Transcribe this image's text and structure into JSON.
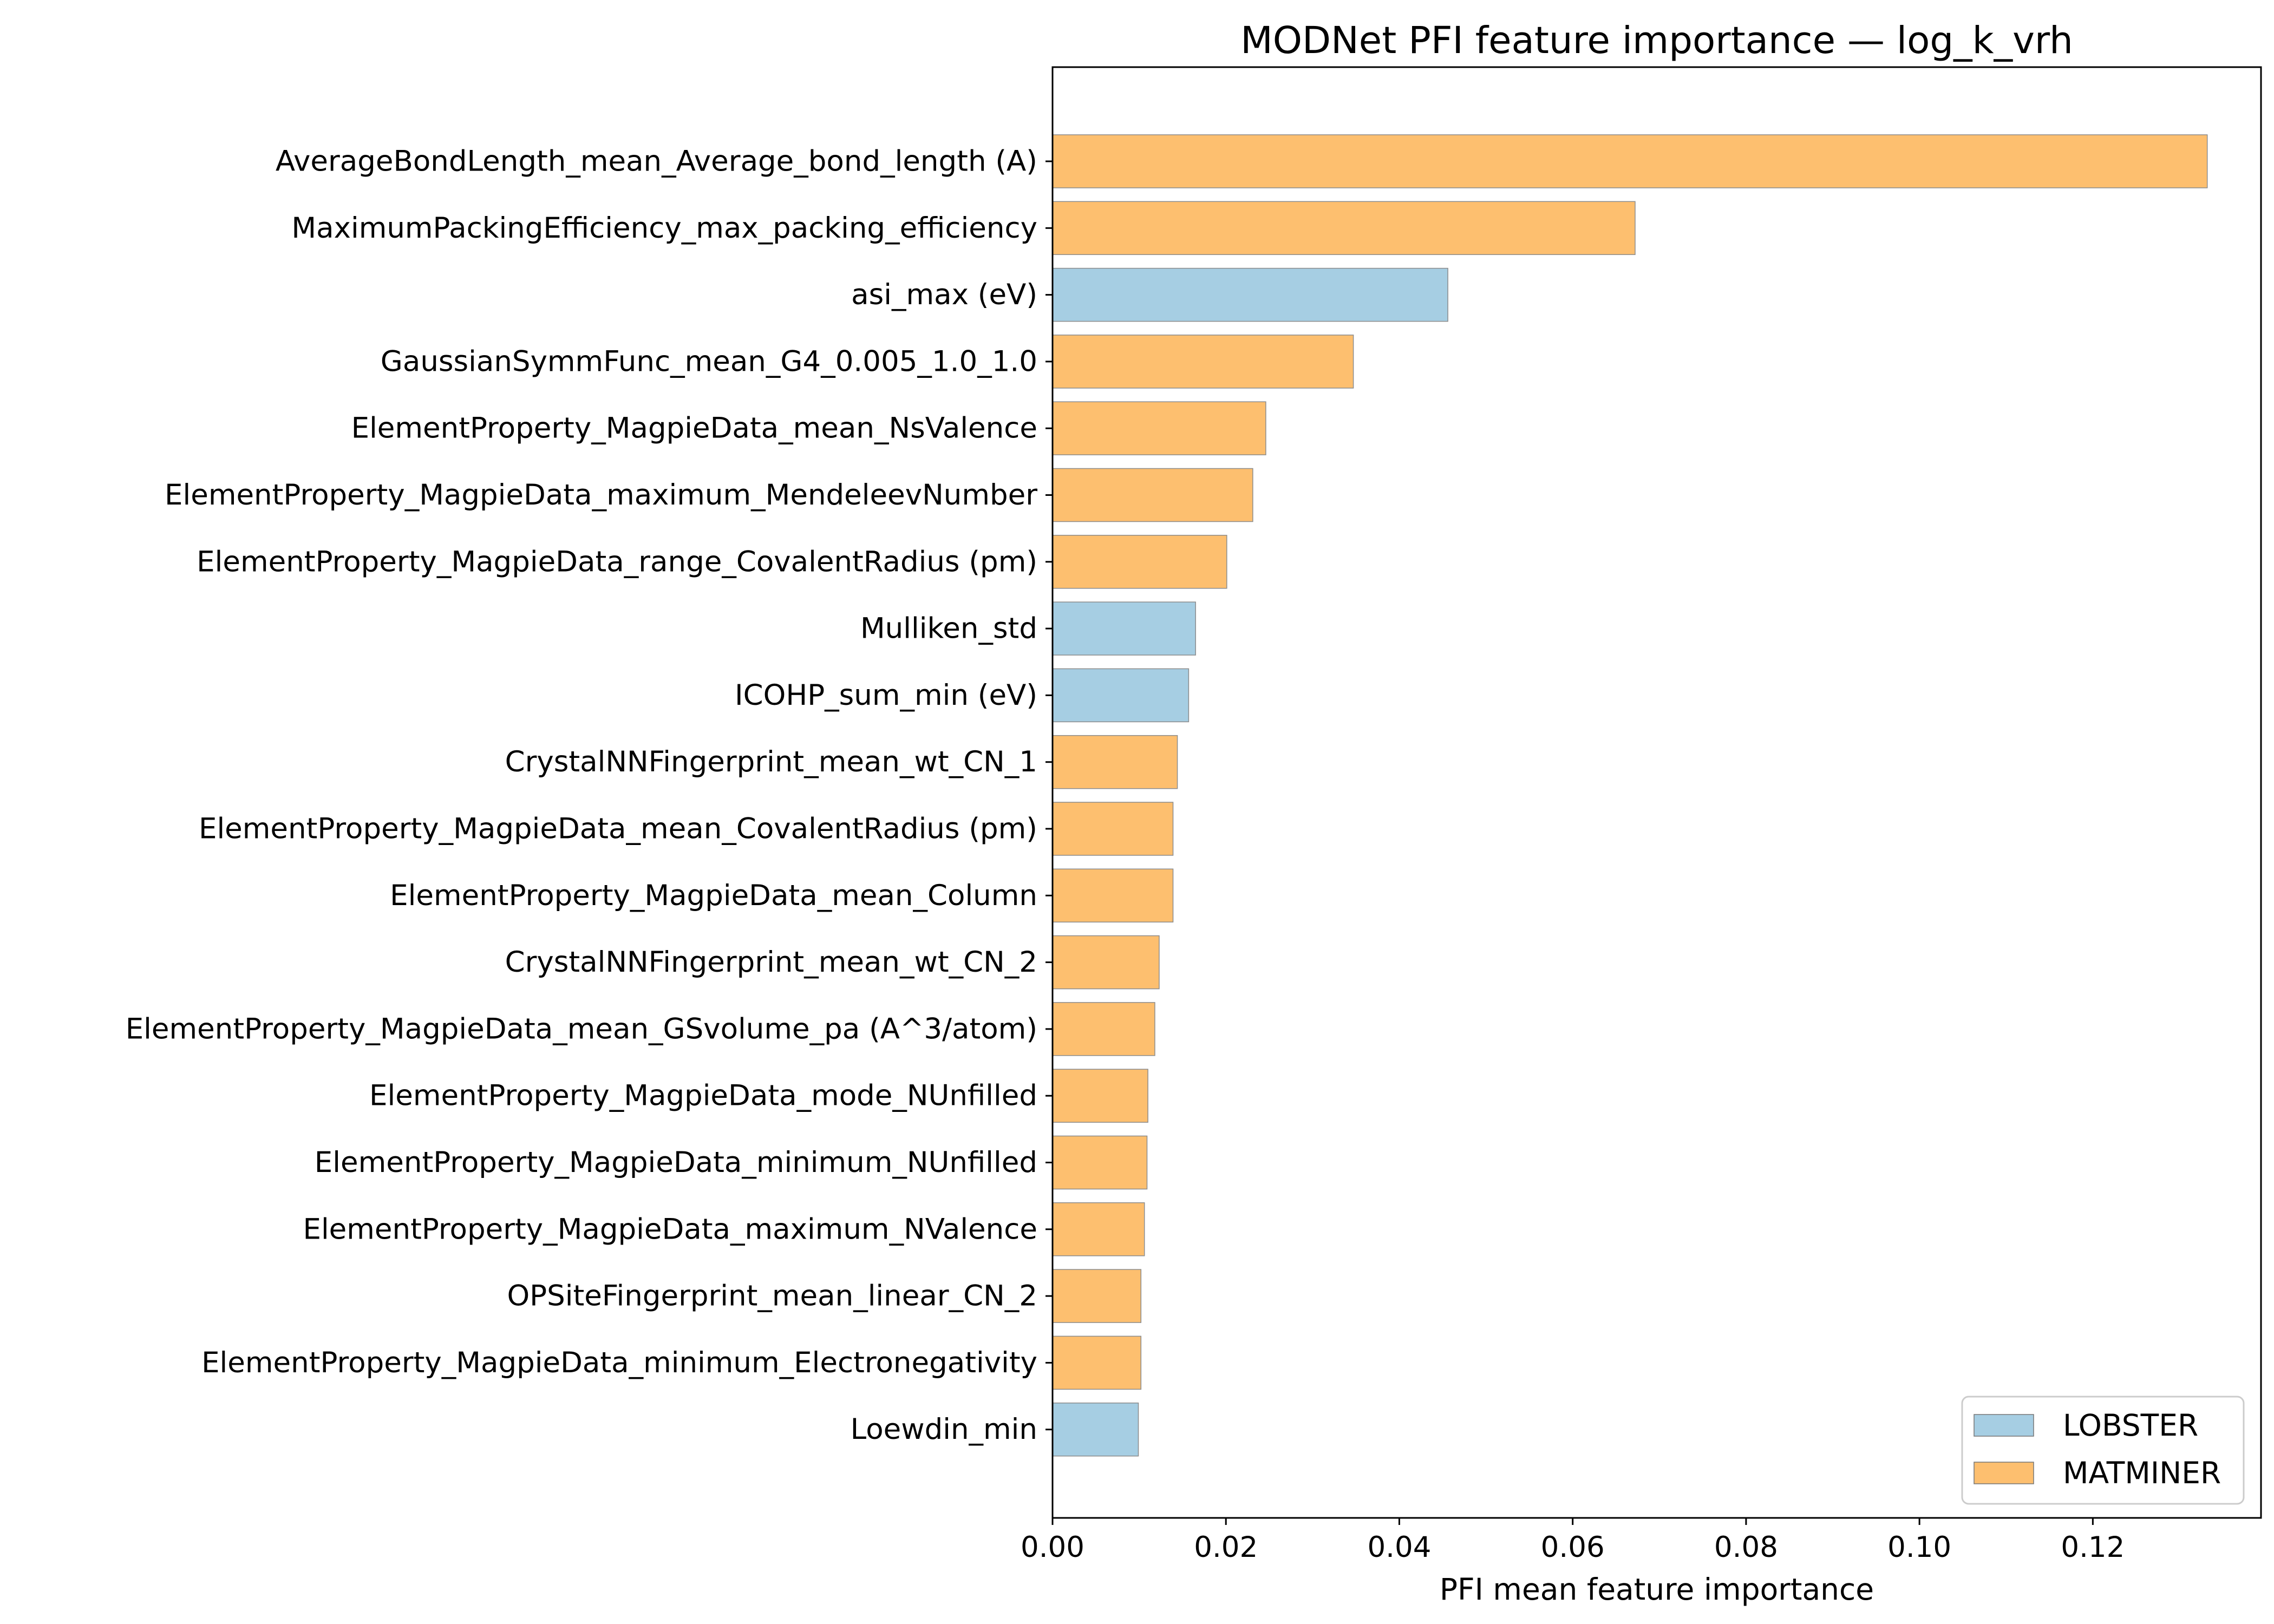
{
  "chart_data": {
    "type": "bar",
    "orientation": "horizontal",
    "title": "MODNet PFI feature importance — log_k_vrh",
    "xlabel": "PFI mean feature importance",
    "ylabel": "",
    "xlim": [
      0,
      0.1394
    ],
    "xticks": [
      0.0,
      0.02,
      0.04,
      0.06,
      0.08,
      0.1,
      0.12
    ],
    "xtick_labels": [
      "0.00",
      "0.02",
      "0.04",
      "0.06",
      "0.08",
      "0.10",
      "0.12"
    ],
    "grid": false,
    "legend_position": "bottom-right",
    "series_colors": {
      "LOBSTER": "#a6cee3",
      "MATMINER": "#fdbf6f"
    },
    "legend": [
      {
        "label": "LOBSTER",
        "color": "#a6cee3"
      },
      {
        "label": "MATMINER",
        "color": "#fdbf6f"
      }
    ],
    "bars": [
      {
        "label": "AverageBondLength_mean_Average_bond_length (A)",
        "value": 0.1332,
        "group": "MATMINER"
      },
      {
        "label": "MaximumPackingEfficiency_max_packing_efficiency",
        "value": 0.0672,
        "group": "MATMINER"
      },
      {
        "label": "asi_max (eV)",
        "value": 0.0456,
        "group": "LOBSTER"
      },
      {
        "label": "GaussianSymmFunc_mean_G4_0.005_1.0_1.0",
        "value": 0.0347,
        "group": "MATMINER"
      },
      {
        "label": "ElementProperty_MagpieData_mean_NsValence",
        "value": 0.0246,
        "group": "MATMINER"
      },
      {
        "label": "ElementProperty_MagpieData_maximum_MendeleevNumber",
        "value": 0.0231,
        "group": "MATMINER"
      },
      {
        "label": "ElementProperty_MagpieData_range_CovalentRadius (pm)",
        "value": 0.0201,
        "group": "MATMINER"
      },
      {
        "label": "Mulliken_std",
        "value": 0.0165,
        "group": "LOBSTER"
      },
      {
        "label": "ICOHP_sum_min (eV)",
        "value": 0.0157,
        "group": "LOBSTER"
      },
      {
        "label": "CrystalNNFingerprint_mean_wt_CN_1",
        "value": 0.0144,
        "group": "MATMINER"
      },
      {
        "label": "ElementProperty_MagpieData_mean_CovalentRadius (pm)",
        "value": 0.0139,
        "group": "MATMINER"
      },
      {
        "label": "ElementProperty_MagpieData_mean_Column",
        "value": 0.0139,
        "group": "MATMINER"
      },
      {
        "label": "CrystalNNFingerprint_mean_wt_CN_2",
        "value": 0.0123,
        "group": "MATMINER"
      },
      {
        "label": "ElementProperty_MagpieData_mean_GSvolume_pa (A^3/atom)",
        "value": 0.0118,
        "group": "MATMINER"
      },
      {
        "label": "ElementProperty_MagpieData_mode_NUnfilled",
        "value": 0.011,
        "group": "MATMINER"
      },
      {
        "label": "ElementProperty_MagpieData_minimum_NUnfilled",
        "value": 0.0109,
        "group": "MATMINER"
      },
      {
        "label": "ElementProperty_MagpieData_maximum_NValence",
        "value": 0.0106,
        "group": "MATMINER"
      },
      {
        "label": "OPSiteFingerprint_mean_linear_CN_2",
        "value": 0.0102,
        "group": "MATMINER"
      },
      {
        "label": "ElementProperty_MagpieData_minimum_Electronegativity",
        "value": 0.0102,
        "group": "MATMINER"
      },
      {
        "label": "Loewdin_min",
        "value": 0.0099,
        "group": "LOBSTER"
      }
    ]
  }
}
